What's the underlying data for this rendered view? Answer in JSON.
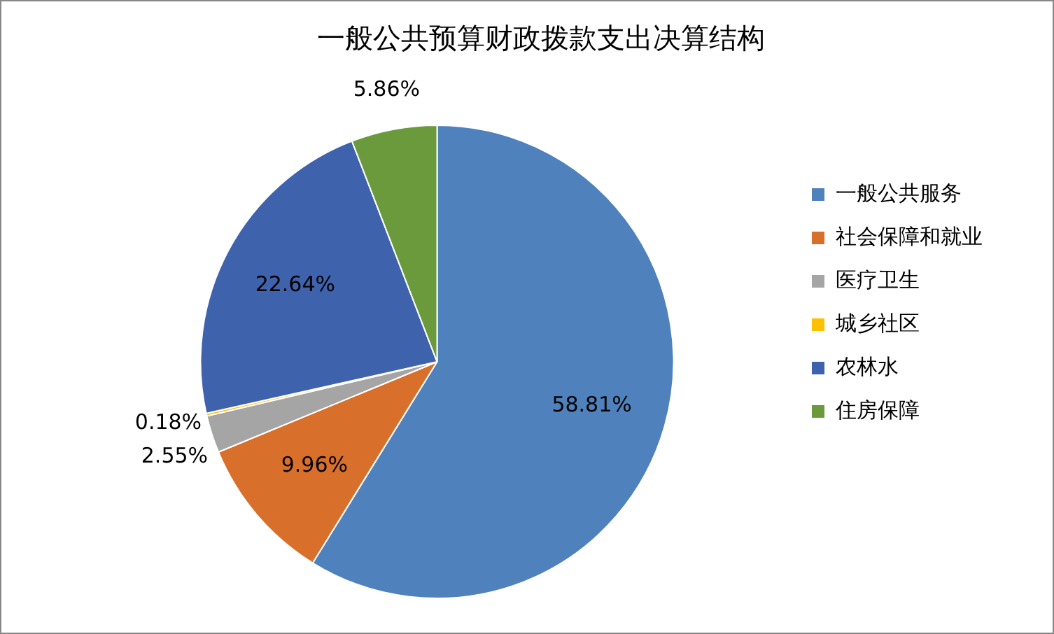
{
  "chart_data": {
    "type": "pie",
    "title": "一般公共预算财政拨款支出决算结构",
    "categories": [
      "一般公共服务",
      "社会保障和就业",
      "医疗卫生",
      "城乡社区",
      "农林水",
      "住房保障"
    ],
    "values": [
      58.81,
      9.96,
      2.55,
      0.18,
      22.64,
      5.86
    ],
    "colors": [
      "#4f81bd",
      "#d8702b",
      "#a5a5a5",
      "#ffc000",
      "#3f62ad",
      "#6a9a3c"
    ],
    "value_labels": [
      "58.81%",
      "9.96%",
      "2.55%",
      "0.18%",
      "22.64%",
      "5.86%"
    ],
    "legend": "right"
  }
}
